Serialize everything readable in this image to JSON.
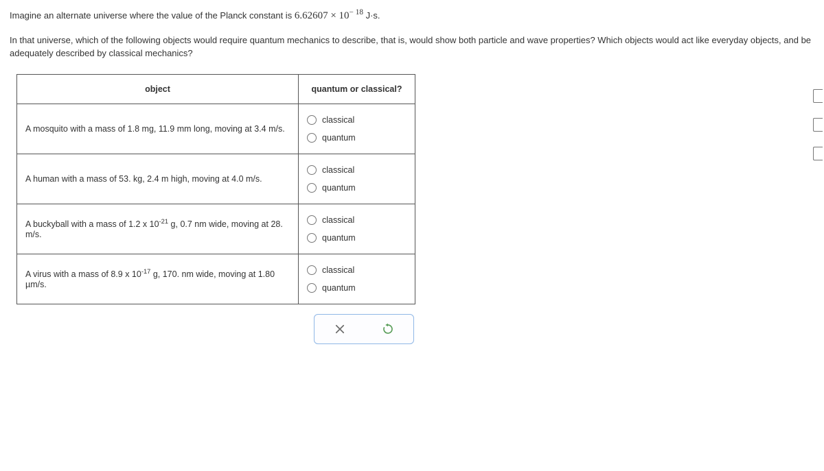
{
  "question": {
    "line1_pre": "Imagine an alternate universe where the value of the Planck constant is ",
    "constant_base": "6.62607 × 10",
    "constant_exp": "− 18",
    "constant_unit": " J·s.",
    "line2": "In that universe, which of the following objects would require quantum mechanics to describe, that is, would show both particle and wave properties? Which objects would act like everyday objects, and be adequately described by classical mechanics?"
  },
  "table": {
    "headers": {
      "object": "object",
      "qc": "quantum or classical?"
    },
    "option_labels": {
      "classical": "classical",
      "quantum": "quantum"
    },
    "rows": [
      {
        "id": "r1",
        "object_html": "A mosquito with a mass of 1.8 mg, 11.9 mm long, moving at 3.4 m/s."
      },
      {
        "id": "r2",
        "object_html": "A human with a mass of 53. kg, 2.4 m high, moving at 4.0 m/s."
      },
      {
        "id": "r3",
        "object_html": "A buckyball with a mass of 1.2 x 10<sup>-21</sup> g, 0.7 nm wide, moving at 28. m/s."
      },
      {
        "id": "r4",
        "object_html": "A virus with a mass of 8.9 x 10<sup>-17</sup> g, 170. nm wide, moving at 1.80 µm/s."
      }
    ]
  },
  "colors": {
    "border": "#555555",
    "action_border": "#8fb7e6",
    "clear_icon": "#6b6b6b",
    "reset_icon": "#5a9e5a"
  }
}
